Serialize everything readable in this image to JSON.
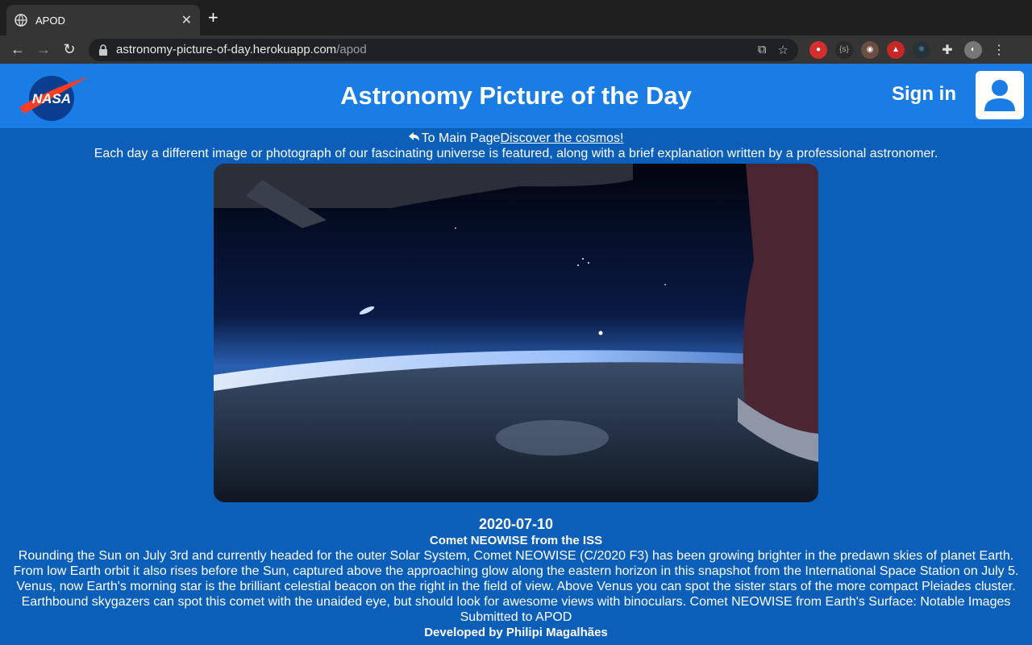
{
  "browser": {
    "tab_title": "APOD",
    "url_host": "astronomy-picture-of-day.herokuapp.com",
    "url_path": "/apod"
  },
  "header": {
    "logo_text": "NASA",
    "title": "Astronomy Picture of the Day",
    "signin_label": "Sign in"
  },
  "nav": {
    "back_label": "To Main Page",
    "discover_label": "Discover the cosmos!"
  },
  "intro": "Each day a different image or photograph of our fascinating universe is featured, along with a brief explanation written by a professional astronomer.",
  "apod": {
    "date": "2020-07-10",
    "title": "Comet NEOWISE from the ISS",
    "explanation": "Rounding the Sun on July 3rd and currently headed for the outer Solar System, Comet NEOWISE (C/2020 F3) has been growing brighter in the predawn skies of planet Earth. From low Earth orbit it also rises before the Sun, captured above the approaching glow along the eastern horizon in this snapshot from the International Space Station on July 5. Venus, now Earth's morning star is the brilliant celestial beacon on the right in the field of view. Above Venus you can spot the sister stars of the more compact Pleiades cluster. Earthbound skygazers can spot this comet with the unaided eye, but should look for awesome views with binoculars. Comet NEOWISE from Earth's Surface: Notable Images Submitted to APOD"
  },
  "footer": {
    "credit": "Developed by Philipi Magalhães"
  },
  "colors": {
    "page_bg": "#0b5fb8",
    "header_bg": "#1a7de6"
  }
}
